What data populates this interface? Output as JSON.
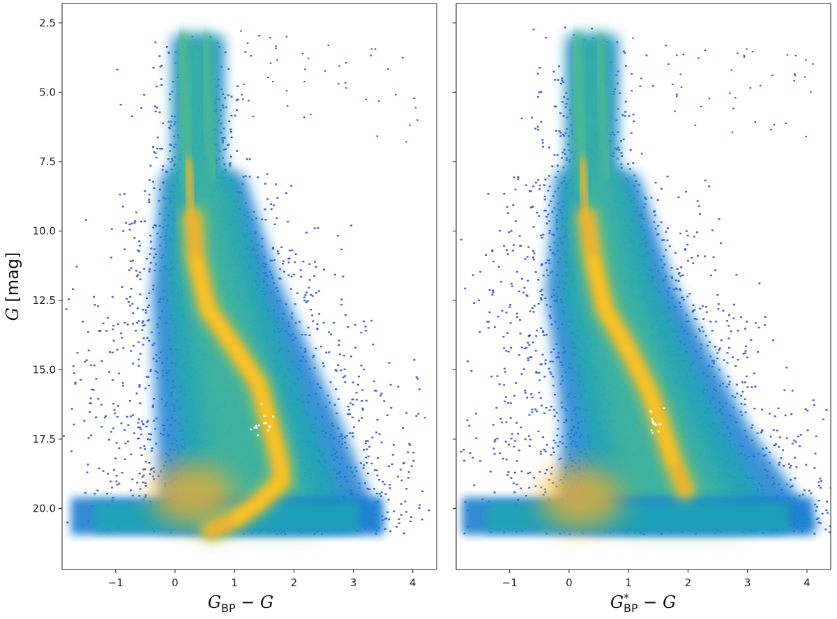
{
  "chart_data": [
    {
      "type": "heatmap",
      "panel": "left",
      "xlabel": "G_BP − G",
      "ylabel": "G [mag]",
      "xlim": [
        -1.9,
        4.4
      ],
      "ylim": [
        22.2,
        1.8
      ],
      "y_inverted": true,
      "xticks": [
        -1,
        0,
        1,
        2,
        3,
        4
      ],
      "xtick_labels": [
        "−1",
        "0",
        "1",
        "2",
        "3",
        "4"
      ],
      "yticks": [
        2.5,
        5.0,
        7.5,
        10.0,
        12.5,
        15.0,
        17.5,
        20.0
      ],
      "ytick_labels": [
        "2.5",
        "5.0",
        "7.5",
        "10.0",
        "12.5",
        "15.0",
        "17.5",
        "20.0"
      ],
      "colormap": [
        "#2f4fd8",
        "#1e7fd0",
        "#1ea6b4",
        "#54c08a",
        "#c7c54a",
        "#f5b22a",
        "#ffd020",
        "#ffffff"
      ],
      "density_features": [
        {
          "feature": "main sequence ridge",
          "points": [
            [
              0.3,
              9.5
            ],
            [
              0.35,
              11.0
            ],
            [
              0.55,
              12.8
            ],
            [
              1.0,
              14.2
            ],
            [
              1.4,
              15.5
            ],
            [
              1.6,
              17.0
            ],
            [
              1.75,
              18.2
            ],
            [
              1.8,
              19.0
            ],
            [
              1.4,
              19.8
            ],
            [
              1.0,
              20.4
            ],
            [
              0.6,
              20.8
            ]
          ]
        },
        {
          "feature": "blue sequence",
          "points": [
            [
              0.1,
              3.0
            ],
            [
              0.15,
              5.0
            ],
            [
              0.2,
              7.0
            ],
            [
              0.25,
              8.5
            ]
          ]
        },
        {
          "feature": "red branch",
          "points": [
            [
              0.5,
              3.0
            ],
            [
              0.55,
              5.0
            ],
            [
              0.6,
              7.0
            ],
            [
              0.65,
              8.0
            ]
          ]
        },
        {
          "feature": "faint blob",
          "points": [
            [
              0.3,
              19.5
            ]
          ]
        }
      ],
      "grid": false
    },
    {
      "type": "heatmap",
      "panel": "right",
      "xlabel": "G*_BP − G",
      "ylabel": "",
      "xlim": [
        -1.9,
        4.4
      ],
      "ylim": [
        22.2,
        1.8
      ],
      "y_inverted": true,
      "xticks": [
        -1,
        0,
        1,
        2,
        3,
        4
      ],
      "xtick_labels": [
        "−1",
        "0",
        "1",
        "2",
        "3",
        "4"
      ],
      "yticks": [
        2.5,
        5.0,
        7.5,
        10.0,
        12.5,
        15.0,
        17.5,
        20.0
      ],
      "ytick_labels": [],
      "colormap": [
        "#2f4fd8",
        "#1e7fd0",
        "#1ea6b4",
        "#54c08a",
        "#c7c54a",
        "#f5b22a",
        "#ffd020",
        "#ffffff"
      ],
      "density_features": [
        {
          "feature": "main sequence ridge",
          "points": [
            [
              0.3,
              9.5
            ],
            [
              0.4,
              11.0
            ],
            [
              0.6,
              12.8
            ],
            [
              1.0,
              14.3
            ],
            [
              1.35,
              15.8
            ],
            [
              1.55,
              17.0
            ],
            [
              1.75,
              18.3
            ],
            [
              1.95,
              19.3
            ]
          ]
        },
        {
          "feature": "blue sequence",
          "points": [
            [
              0.1,
              3.0
            ],
            [
              0.15,
              5.0
            ],
            [
              0.2,
              7.0
            ],
            [
              0.25,
              8.5
            ]
          ]
        },
        {
          "feature": "red branch",
          "points": [
            [
              0.5,
              3.0
            ],
            [
              0.55,
              5.0
            ],
            [
              0.6,
              7.0
            ],
            [
              0.65,
              8.0
            ]
          ]
        },
        {
          "feature": "faint blob",
          "points": [
            [
              0.2,
              19.6
            ]
          ]
        }
      ],
      "grid": false
    }
  ],
  "labels": {
    "left_xlabel_main": "G",
    "left_xlabel_sub": "BP",
    "right_xlabel_main": "G",
    "right_xlabel_sub": "BP",
    "right_xlabel_sup": "*",
    "xlabel_suffix": " − ",
    "xlabel_tail": "G",
    "ylabel_main": "G",
    "ylabel_unit": " [mag]"
  }
}
